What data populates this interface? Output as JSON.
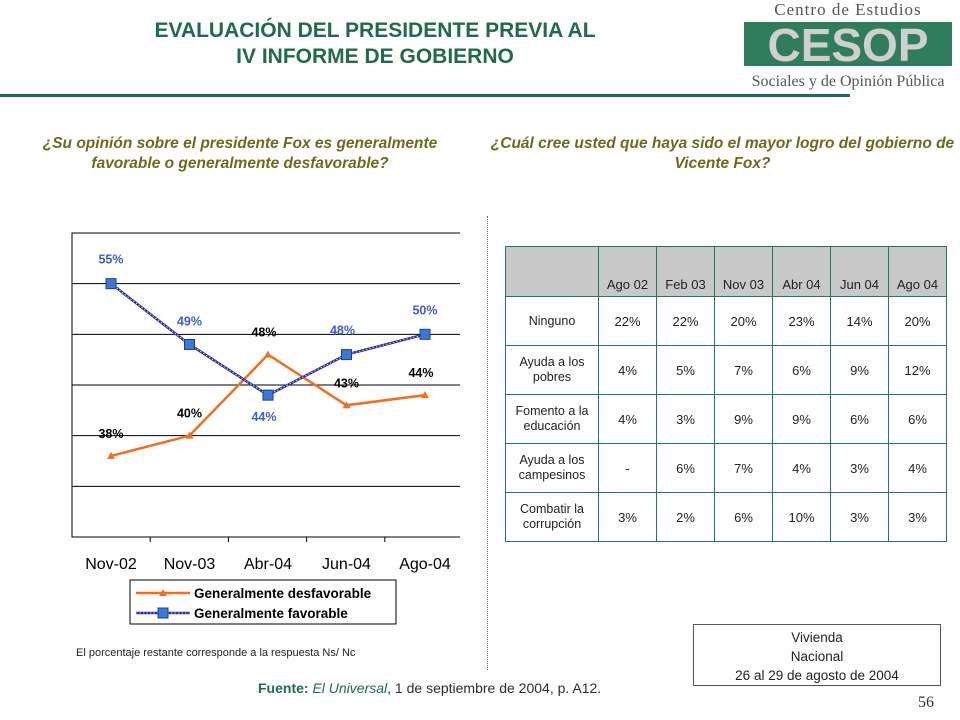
{
  "title": [
    "EVALUACIÓN DEL PRESIDENTE PREVIA AL",
    "IV INFORME DE GOBIERNO"
  ],
  "logo": {
    "top": "Centro de Estudios",
    "mark": "CESOP",
    "bottom": "Sociales y de Opinión Pública"
  },
  "question_left": "¿Su opinión sobre el presidente Fox es generalmente favorable o generalmente desfavorable?",
  "question_right": "¿Cuál cree usted que haya sido el mayor logro del gobierno de Vicente Fox?",
  "chart_data": {
    "type": "line",
    "categories": [
      "Nov-02",
      "Nov-03",
      "Abr-04",
      "Jun-04",
      "Ago-04"
    ],
    "series": [
      {
        "name": "Generalmente desfavorable",
        "values": [
          38,
          40,
          48,
          43,
          44
        ],
        "labels": [
          "38%",
          "40%",
          "48%",
          "43%",
          "44%"
        ],
        "color": "#f07020",
        "marker": "triangle"
      },
      {
        "name": "Generalmente favorable",
        "values": [
          55,
          49,
          44,
          48,
          50
        ],
        "labels": [
          "55%",
          "49%",
          "44%",
          "48%",
          "50%"
        ],
        "color": "#2a2aa0",
        "marker": "square"
      }
    ],
    "ylim": [
      30,
      60
    ],
    "grid": true,
    "legend": "bottom"
  },
  "note": "El porcentaje restante corresponde a la respuesta Ns/ Nc",
  "table": {
    "columns": [
      "Ago 02",
      "Feb 03",
      "Nov 03",
      "Abr 04",
      "Jun 04",
      "Ago 04"
    ],
    "rows": [
      {
        "label": [
          "Ninguno"
        ],
        "values": [
          "22%",
          "22%",
          "20%",
          "23%",
          "14%",
          "20%"
        ]
      },
      {
        "label": [
          "Ayuda a los",
          "pobres"
        ],
        "values": [
          "4%",
          "5%",
          "7%",
          "6%",
          "9%",
          "12%"
        ]
      },
      {
        "label": [
          "Fomento a la",
          "educación"
        ],
        "values": [
          "4%",
          "3%",
          "9%",
          "9%",
          "6%",
          "6%"
        ]
      },
      {
        "label": [
          "Ayuda a los",
          "campesinos"
        ],
        "values": [
          "-",
          "6%",
          "7%",
          "4%",
          "3%",
          "4%"
        ]
      },
      {
        "label": [
          "Combatir la",
          "corrupción"
        ],
        "values": [
          "3%",
          "2%",
          "6%",
          "10%",
          "3%",
          "3%"
        ]
      }
    ]
  },
  "info": [
    "Vivienda",
    "Nacional",
    "26 al 29 de agosto de 2004"
  ],
  "source": {
    "label": "Fuente:",
    "publication": "El Universal",
    "rest": ", 1 de septiembre de 2004, p. A12."
  },
  "page_number": "56",
  "colors": {
    "accent": "#1f6b4a",
    "question": "#6b6b1e",
    "desfavorable": "#f07020",
    "favorable": "#2a2aa0"
  }
}
